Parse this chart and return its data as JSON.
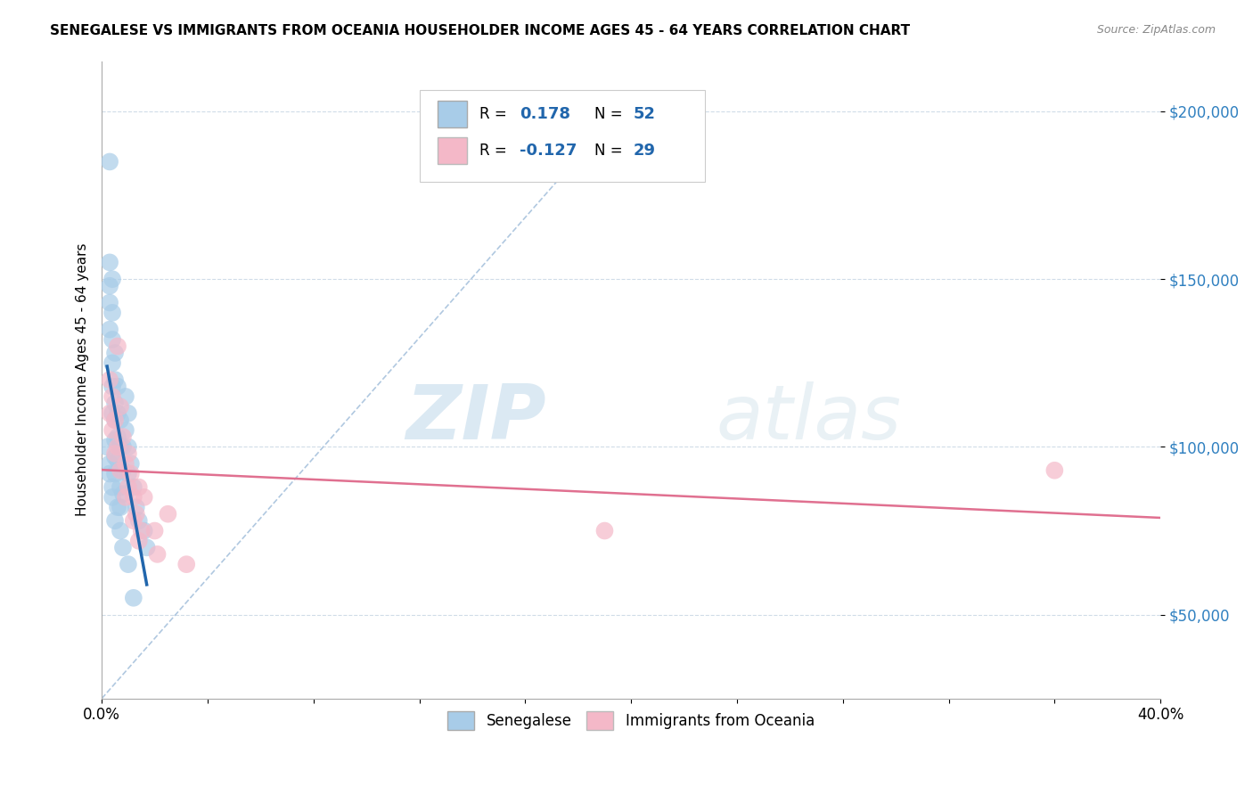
{
  "title": "SENEGALESE VS IMMIGRANTS FROM OCEANIA HOUSEHOLDER INCOME AGES 45 - 64 YEARS CORRELATION CHART",
  "source": "Source: ZipAtlas.com",
  "ylabel": "Householder Income Ages 45 - 64 years",
  "y_ticks": [
    50000,
    100000,
    150000,
    200000
  ],
  "y_tick_labels": [
    "$50,000",
    "$100,000",
    "$150,000",
    "$200,000"
  ],
  "xlim": [
    0.0,
    0.4
  ],
  "ylim": [
    25000,
    215000
  ],
  "legend1_R": "0.178",
  "legend1_N": "52",
  "legend2_R": "-0.127",
  "legend2_N": "29",
  "blue_color": "#a8cce8",
  "pink_color": "#f4b8c8",
  "blue_line_color": "#2166ac",
  "pink_line_color": "#e07090",
  "dashed_line_color": "#b0c8e0",
  "senegalese_x": [
    0.003,
    0.003,
    0.003,
    0.003,
    0.003,
    0.004,
    0.004,
    0.004,
    0.004,
    0.004,
    0.004,
    0.005,
    0.005,
    0.005,
    0.005,
    0.005,
    0.005,
    0.005,
    0.006,
    0.006,
    0.006,
    0.006,
    0.007,
    0.007,
    0.007,
    0.007,
    0.007,
    0.008,
    0.008,
    0.008,
    0.009,
    0.009,
    0.01,
    0.01,
    0.01,
    0.011,
    0.012,
    0.013,
    0.014,
    0.016,
    0.017,
    0.003,
    0.004,
    0.005,
    0.002,
    0.003,
    0.004,
    0.006,
    0.007,
    0.008,
    0.01,
    0.012
  ],
  "senegalese_y": [
    185000,
    155000,
    148000,
    143000,
    135000,
    150000,
    140000,
    132000,
    125000,
    118000,
    110000,
    128000,
    120000,
    113000,
    108000,
    102000,
    97000,
    92000,
    118000,
    110000,
    103000,
    96000,
    108000,
    100000,
    93000,
    88000,
    82000,
    100000,
    93000,
    86000,
    115000,
    105000,
    110000,
    100000,
    92000,
    95000,
    88000,
    82000,
    78000,
    75000,
    70000,
    95000,
    85000,
    78000,
    100000,
    92000,
    88000,
    82000,
    75000,
    70000,
    65000,
    55000
  ],
  "oceania_x": [
    0.003,
    0.003,
    0.004,
    0.004,
    0.005,
    0.005,
    0.006,
    0.006,
    0.007,
    0.007,
    0.008,
    0.009,
    0.009,
    0.01,
    0.01,
    0.011,
    0.012,
    0.012,
    0.013,
    0.014,
    0.014,
    0.015,
    0.016,
    0.02,
    0.021,
    0.025,
    0.032,
    0.36,
    0.19
  ],
  "oceania_y": [
    120000,
    110000,
    115000,
    105000,
    108000,
    98000,
    130000,
    100000,
    112000,
    93000,
    103000,
    95000,
    85000,
    98000,
    88000,
    92000,
    85000,
    78000,
    80000,
    88000,
    72000,
    75000,
    85000,
    75000,
    68000,
    80000,
    65000,
    93000,
    75000
  ]
}
